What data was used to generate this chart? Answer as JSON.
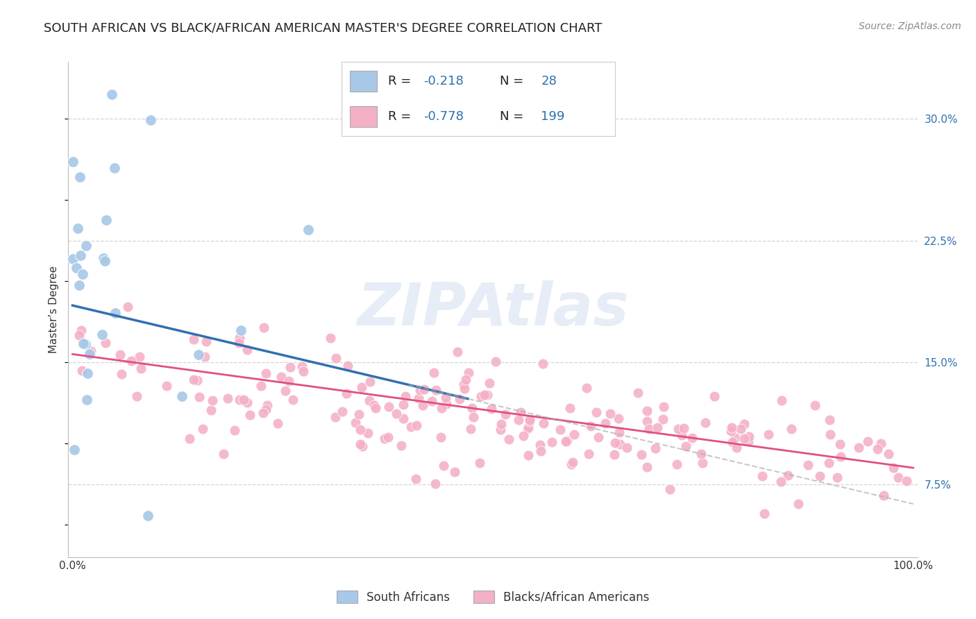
{
  "title": "SOUTH AFRICAN VS BLACK/AFRICAN AMERICAN MASTER'S DEGREE CORRELATION CHART",
  "source": "Source: ZipAtlas.com",
  "ylabel": "Master’s Degree",
  "xlim": [
    -0.005,
    1.005
  ],
  "ylim": [
    0.03,
    0.335
  ],
  "yticks": [
    0.075,
    0.15,
    0.225,
    0.3
  ],
  "ytick_labels": [
    "7.5%",
    "15.0%",
    "22.5%",
    "30.0%"
  ],
  "blue_scatter_color": "#a8c8e8",
  "pink_scatter_color": "#f4b0c5",
  "blue_line_color": "#3070b0",
  "pink_line_color": "#e05080",
  "text_blue_color": "#3070b0",
  "black_text": "#222222",
  "blue_R": -0.218,
  "blue_N": 28,
  "pink_R": -0.778,
  "pink_N": 199,
  "legend_label_blue": "South Africans",
  "legend_label_pink": "Blacks/African Americans",
  "watermark": "ZIPAtlas",
  "bg_color": "#ffffff",
  "grid_color": "#cccccc",
  "title_fontsize": 13,
  "source_fontsize": 10,
  "legend_fontsize": 13,
  "tick_fontsize": 11
}
